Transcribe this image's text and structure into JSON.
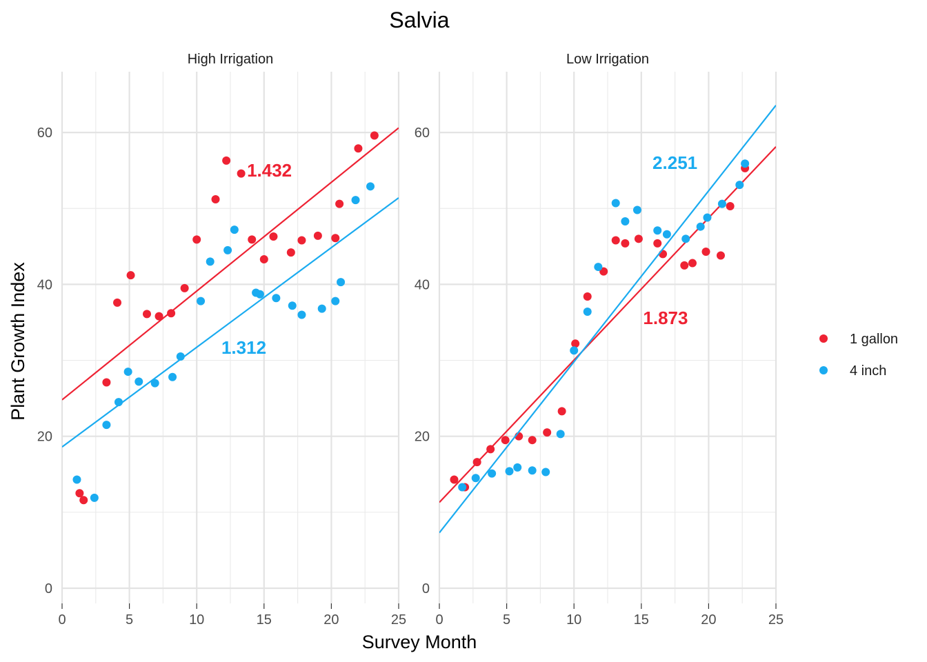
{
  "chart_data": {
    "type": "scatter",
    "title": "Salvia",
    "xlabel": "Survey Month",
    "ylabel": "Plant Growth Index",
    "xlim": [
      0,
      25
    ],
    "ylim": [
      -2,
      68
    ],
    "x_ticks": [
      0,
      5,
      10,
      15,
      20,
      25
    ],
    "y_ticks": [
      0,
      20,
      40,
      60
    ],
    "grid": true,
    "legend_position": "right",
    "series_colors": {
      "1 gallon": "#ee2233",
      "4 inch": "#1aabf0"
    },
    "legend": [
      {
        "name": "1 gallon",
        "color": "#ee2233"
      },
      {
        "name": "4 inch",
        "color": "#1aabf0"
      }
    ],
    "panels": [
      {
        "strip": "High Irrigation",
        "series": [
          {
            "name": "1 gallon",
            "points": [
              [
                1.3,
                12.5
              ],
              [
                1.6,
                11.6
              ],
              [
                3.3,
                27.1
              ],
              [
                4.1,
                37.6
              ],
              [
                5.1,
                41.2
              ],
              [
                6.3,
                36.1
              ],
              [
                7.2,
                35.8
              ],
              [
                8.1,
                36.2
              ],
              [
                9.1,
                39.5
              ],
              [
                10.0,
                45.9
              ],
              [
                11.4,
                51.2
              ],
              [
                12.2,
                56.3
              ],
              [
                13.3,
                54.6
              ],
              [
                14.1,
                45.9
              ],
              [
                15.0,
                43.3
              ],
              [
                15.7,
                46.3
              ],
              [
                17.0,
                44.2
              ],
              [
                17.8,
                45.8
              ],
              [
                19.0,
                46.4
              ],
              [
                20.3,
                46.1
              ],
              [
                20.6,
                50.6
              ],
              [
                22.0,
                57.9
              ],
              [
                23.2,
                59.6
              ]
            ],
            "fit": {
              "slope": 1.432,
              "intercept": 24.8
            },
            "label": "1.432",
            "label_pos": [
              15.4,
              55
            ]
          },
          {
            "name": "4 inch",
            "points": [
              [
                1.1,
                14.3
              ],
              [
                2.4,
                11.9
              ],
              [
                3.3,
                21.5
              ],
              [
                4.2,
                24.5
              ],
              [
                4.9,
                28.5
              ],
              [
                5.7,
                27.2
              ],
              [
                6.9,
                27.0
              ],
              [
                8.2,
                27.8
              ],
              [
                8.8,
                30.5
              ],
              [
                10.3,
                37.8
              ],
              [
                11.0,
                43.0
              ],
              [
                12.3,
                44.5
              ],
              [
                12.8,
                47.2
              ],
              [
                14.4,
                38.9
              ],
              [
                14.7,
                38.7
              ],
              [
                15.9,
                38.2
              ],
              [
                17.1,
                37.2
              ],
              [
                17.8,
                36.0
              ],
              [
                19.3,
                36.8
              ],
              [
                20.3,
                37.8
              ],
              [
                20.7,
                40.3
              ],
              [
                21.8,
                51.1
              ],
              [
                22.9,
                52.9
              ]
            ],
            "fit": {
              "slope": 1.312,
              "intercept": 18.6
            },
            "label": "1.312",
            "label_pos": [
              13.5,
              31.7
            ]
          }
        ]
      },
      {
        "strip": "Low Irrigation",
        "series": [
          {
            "name": "1 gallon",
            "points": [
              [
                1.1,
                14.3
              ],
              [
                1.9,
                13.3
              ],
              [
                2.8,
                16.6
              ],
              [
                3.8,
                18.3
              ],
              [
                4.9,
                19.5
              ],
              [
                5.9,
                20.0
              ],
              [
                6.9,
                19.5
              ],
              [
                8.0,
                20.5
              ],
              [
                9.1,
                23.3
              ],
              [
                10.1,
                32.2
              ],
              [
                11.0,
                38.4
              ],
              [
                12.2,
                41.7
              ],
              [
                13.1,
                45.8
              ],
              [
                13.8,
                45.4
              ],
              [
                14.8,
                46.0
              ],
              [
                16.2,
                45.4
              ],
              [
                16.6,
                44.0
              ],
              [
                18.2,
                42.5
              ],
              [
                18.8,
                42.8
              ],
              [
                19.8,
                44.3
              ],
              [
                20.9,
                43.8
              ],
              [
                21.6,
                50.3
              ],
              [
                22.7,
                55.3
              ]
            ],
            "fit": {
              "slope": 1.873,
              "intercept": 11.3
            },
            "label": "1.873",
            "label_pos": [
              16.8,
              35.6
            ]
          },
          {
            "name": "4 inch",
            "points": [
              [
                1.7,
                13.3
              ],
              [
                2.7,
                14.5
              ],
              [
                3.9,
                15.1
              ],
              [
                5.2,
                15.4
              ],
              [
                5.8,
                15.9
              ],
              [
                6.9,
                15.5
              ],
              [
                7.9,
                15.3
              ],
              [
                9.0,
                20.3
              ],
              [
                10.0,
                31.3
              ],
              [
                11.0,
                36.4
              ],
              [
                11.8,
                42.3
              ],
              [
                13.1,
                50.7
              ],
              [
                13.8,
                48.3
              ],
              [
                14.7,
                49.8
              ],
              [
                16.2,
                47.1
              ],
              [
                16.9,
                46.6
              ],
              [
                18.3,
                46.0
              ],
              [
                19.4,
                47.6
              ],
              [
                19.9,
                48.8
              ],
              [
                21.0,
                50.6
              ],
              [
                22.3,
                53.1
              ],
              [
                22.7,
                55.9
              ]
            ],
            "fit": {
              "slope": 2.251,
              "intercept": 7.3
            },
            "label": "2.251",
            "label_pos": [
              17.5,
              56
            ]
          }
        ]
      }
    ]
  }
}
